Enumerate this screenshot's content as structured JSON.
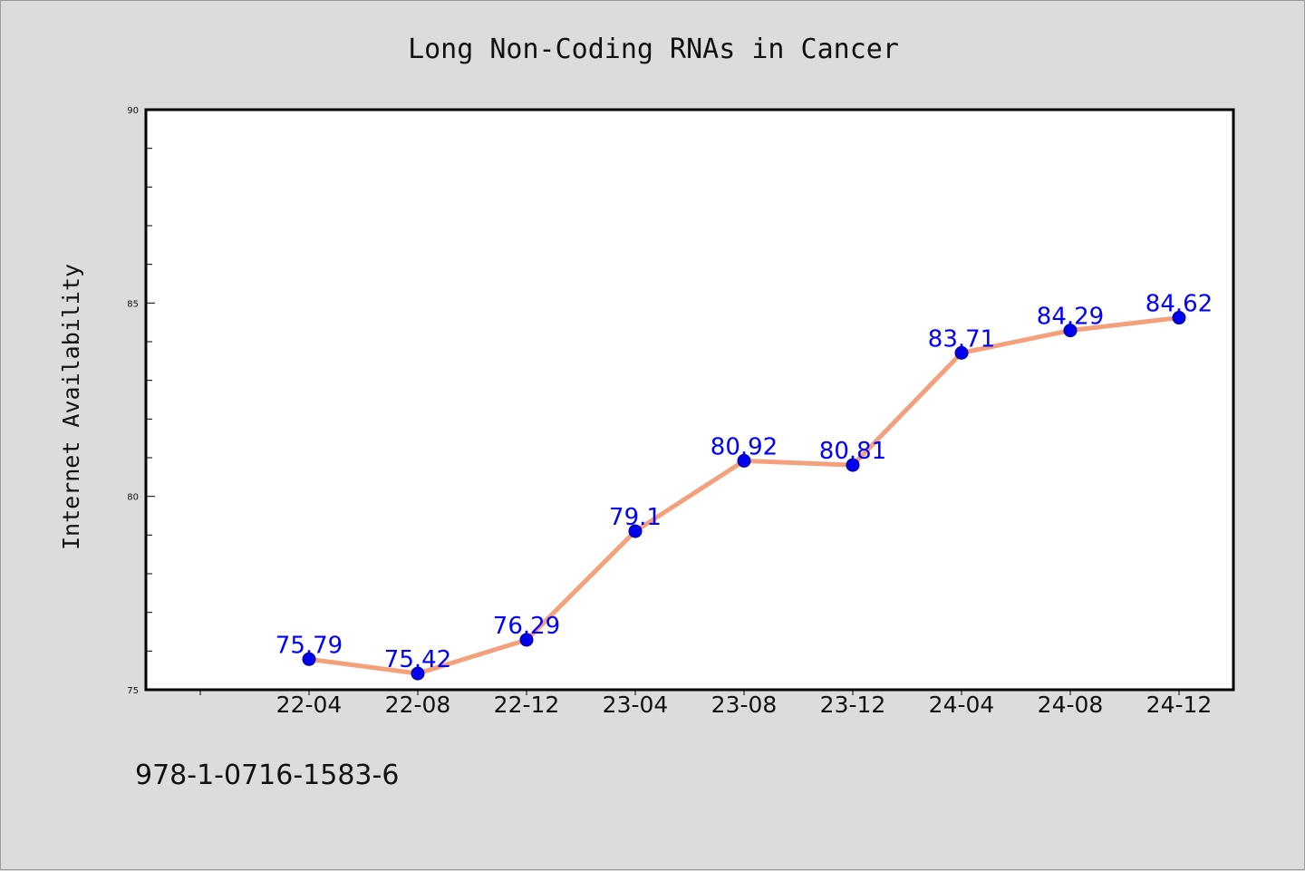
{
  "footer_text": "978-1-0716-1583-6",
  "colors": {
    "background": "#dcdcdc",
    "plot_background": "#ffffff",
    "line": "#f4a07a",
    "marker": "#0000ee",
    "data_label": "#0000ff"
  },
  "chart_data": {
    "type": "line",
    "title": "Long Non-Coding RNAs in Cancer",
    "xlabel": "",
    "ylabel": "Internet Availability",
    "categories": [
      "22-04",
      "22-08",
      "22-12",
      "23-04",
      "23-08",
      "23-12",
      "24-04",
      "24-08",
      "24-12"
    ],
    "series": [
      {
        "values": [
          75.79,
          75.42,
          76.29,
          79.1,
          80.92,
          80.81,
          83.71,
          84.29,
          84.62
        ],
        "data_labels": [
          "75.79",
          "75.42",
          "76.29",
          "79.1",
          "80.92",
          "80.81",
          "83.71",
          "84.29",
          "84.62"
        ]
      }
    ],
    "ylim": [
      75,
      90
    ],
    "yticks": [
      "75",
      "80",
      "85",
      "90"
    ],
    "grid": false,
    "legend": "none"
  }
}
